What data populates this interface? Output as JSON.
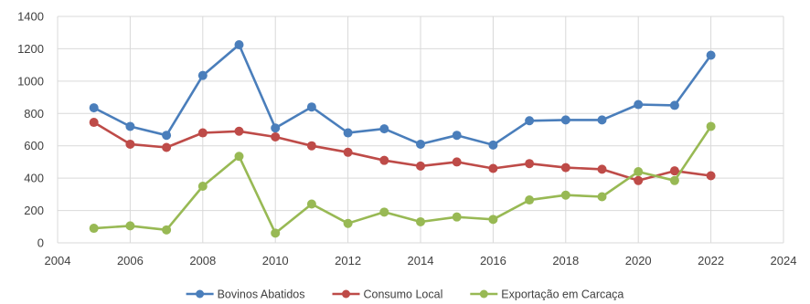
{
  "chart_data": {
    "type": "line",
    "title": "",
    "xlabel": "",
    "ylabel": "",
    "xlim": [
      2004,
      2024
    ],
    "ylim": [
      0,
      1400
    ],
    "x_ticks": [
      "2004",
      "2006",
      "2008",
      "2010",
      "2012",
      "2014",
      "2016",
      "2018",
      "2020",
      "2022",
      "2024"
    ],
    "y_ticks": [
      "0",
      "200",
      "400",
      "600",
      "800",
      "1000",
      "1200",
      "1400"
    ],
    "grid": true,
    "legend_position": "bottom",
    "x": [
      2005,
      2006,
      2007,
      2008,
      2009,
      2010,
      2011,
      2012,
      2013,
      2014,
      2015,
      2016,
      2017,
      2018,
      2019,
      2020,
      2021,
      2022
    ],
    "series": [
      {
        "name": "Bovinos Abatidos",
        "color": "#4a7ebb",
        "values": [
          835,
          720,
          665,
          1035,
          1225,
          710,
          840,
          680,
          705,
          610,
          665,
          605,
          755,
          760,
          760,
          855,
          850,
          1160
        ]
      },
      {
        "name": "Consumo Local",
        "color": "#be4b48",
        "values": [
          745,
          610,
          590,
          680,
          690,
          655,
          600,
          560,
          510,
          475,
          500,
          460,
          490,
          465,
          455,
          385,
          445,
          415
        ]
      },
      {
        "name": "Exportação em Carcaça",
        "color": "#98b954",
        "values": [
          90,
          105,
          80,
          350,
          535,
          60,
          240,
          120,
          190,
          130,
          160,
          145,
          265,
          295,
          285,
          440,
          385,
          720
        ]
      }
    ]
  }
}
